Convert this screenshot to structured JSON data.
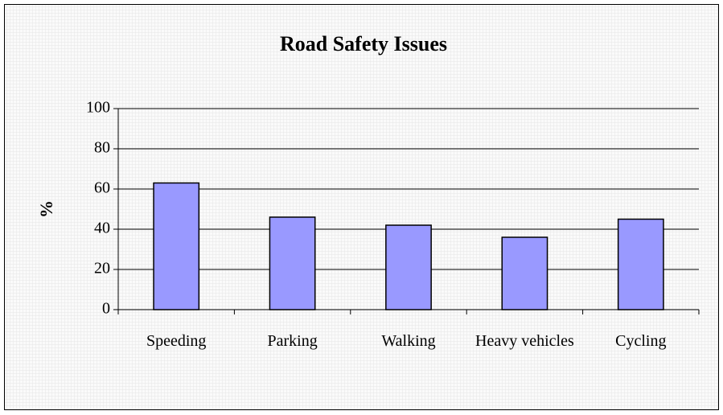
{
  "chart_data": {
    "type": "bar",
    "title": "Road Safety Issues",
    "y_label": "%",
    "categories": [
      "Speeding",
      "Parking",
      "Walking",
      "Heavy vehicles",
      "Cycling"
    ],
    "values": [
      63,
      46,
      42,
      36,
      45
    ],
    "color": "#9999ff",
    "ylim": [
      0,
      100
    ],
    "yticks": [
      0,
      20,
      40,
      60,
      80,
      100
    ],
    "grid": true
  }
}
